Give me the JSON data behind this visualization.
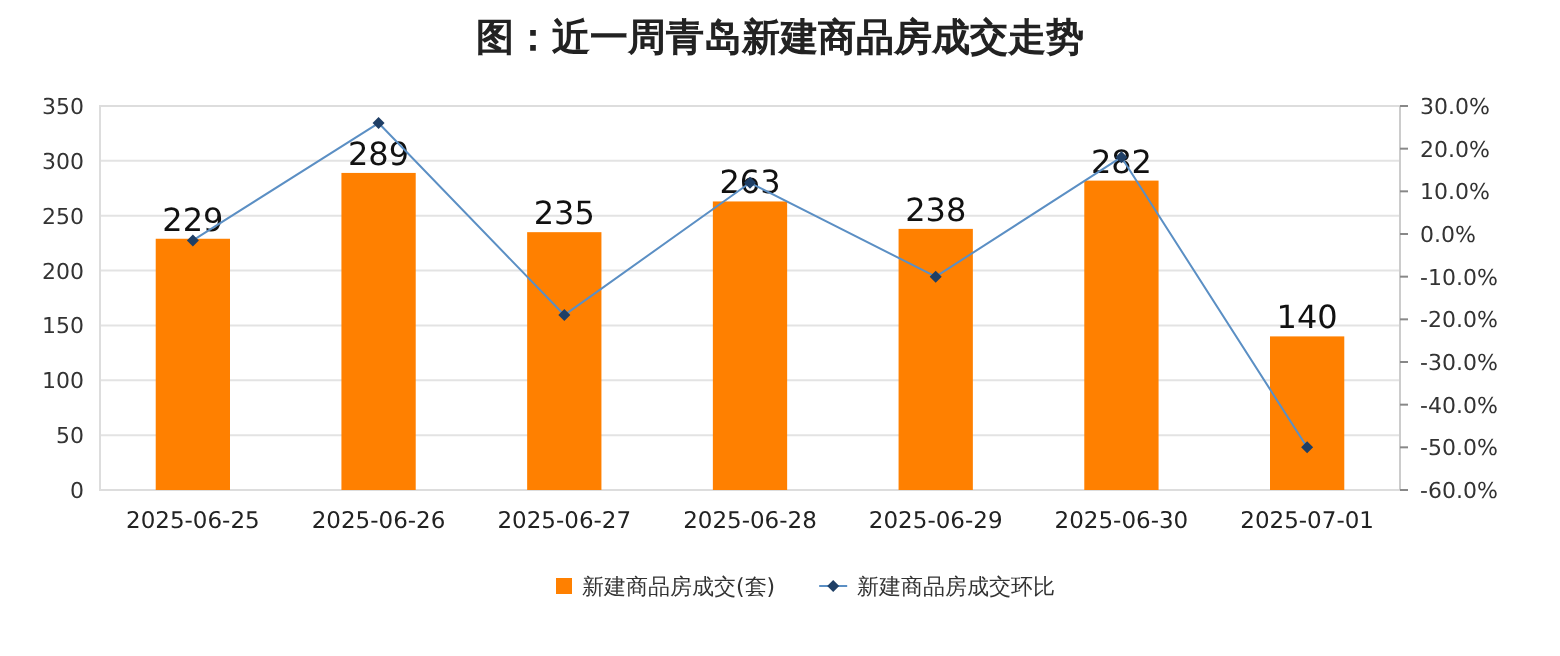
{
  "chart_data": {
    "type": "bar",
    "title": "图：近一周青岛新建商品房成交走势",
    "categories": [
      "2025-06-25",
      "2025-06-26",
      "2025-06-27",
      "2025-06-28",
      "2025-06-29",
      "2025-06-30",
      "2025-07-01"
    ],
    "series": [
      {
        "name": "新建商品房成交(套)",
        "color": "#ff8000",
        "values": [
          229,
          289,
          235,
          263,
          238,
          282,
          140
        ],
        "value_labels": [
          "229",
          "289",
          "235",
          "263",
          "238",
          "282",
          "140"
        ]
      },
      {
        "name": "新建商品房成交环比",
        "type": "line",
        "axis": "y2",
        "color": "#5b8fc4",
        "marker": "diamond",
        "values": [
          -1.5,
          26,
          -19,
          12,
          -10,
          18,
          -50
        ]
      }
    ],
    "ylim": [
      0,
      350
    ],
    "yticks": [
      0,
      50,
      100,
      150,
      200,
      250,
      300,
      350
    ],
    "y2lim": [
      -60,
      30
    ],
    "y2ticks": [
      {
        "value": -60,
        "label": "-60.0%"
      },
      {
        "value": -50,
        "label": "-50.0%"
      },
      {
        "value": -40,
        "label": "-40.0%"
      },
      {
        "value": -30,
        "label": "-30.0%"
      },
      {
        "value": -20,
        "label": "-20.0%"
      },
      {
        "value": -10,
        "label": "-10.0%"
      },
      {
        "value": 0,
        "label": "0.0%"
      },
      {
        "value": 10,
        "label": "10.0%"
      },
      {
        "value": 20,
        "label": "20.0%"
      },
      {
        "value": 30,
        "label": "30.0%"
      }
    ],
    "grid": "y",
    "legend": "bottom"
  }
}
